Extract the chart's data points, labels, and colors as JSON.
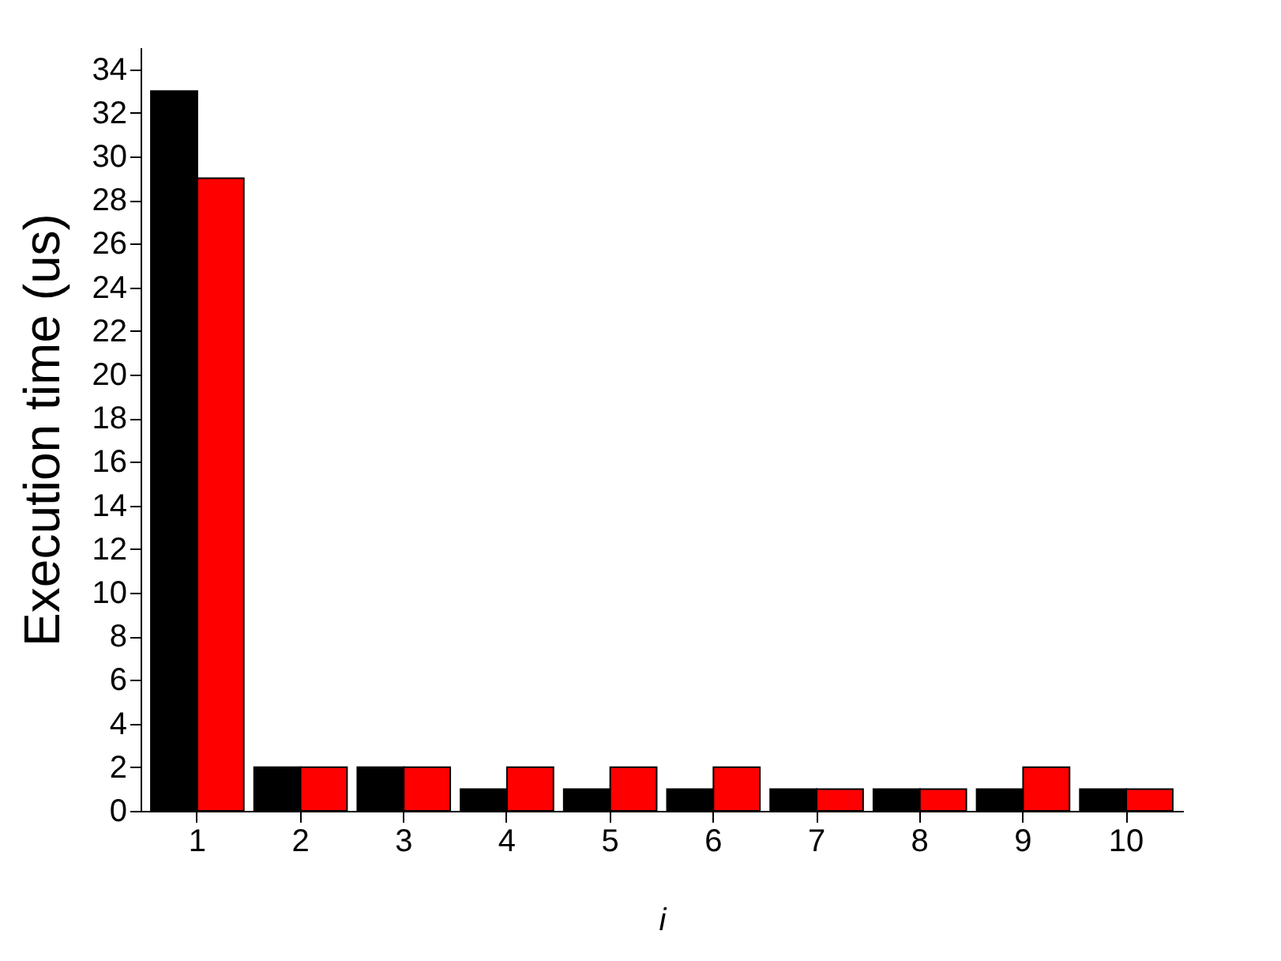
{
  "chart_data": {
    "type": "bar",
    "xlabel": "i",
    "ylabel": "Execution time (us)",
    "categories": [
      "1",
      "2",
      "3",
      "4",
      "5",
      "6",
      "7",
      "8",
      "9",
      "10"
    ],
    "series": [
      {
        "color": "#000000",
        "values": [
          33,
          2,
          2,
          1,
          1,
          1,
          1,
          1,
          1,
          1
        ]
      },
      {
        "color": "#ff0000",
        "values": [
          29,
          2,
          2,
          2,
          2,
          2,
          1,
          1,
          2,
          1
        ]
      }
    ],
    "ylim": [
      0,
      35
    ],
    "yticks": [
      0,
      2,
      4,
      6,
      8,
      10,
      12,
      14,
      16,
      18,
      20,
      22,
      24,
      26,
      28,
      30,
      32,
      34
    ],
    "grid": false
  }
}
